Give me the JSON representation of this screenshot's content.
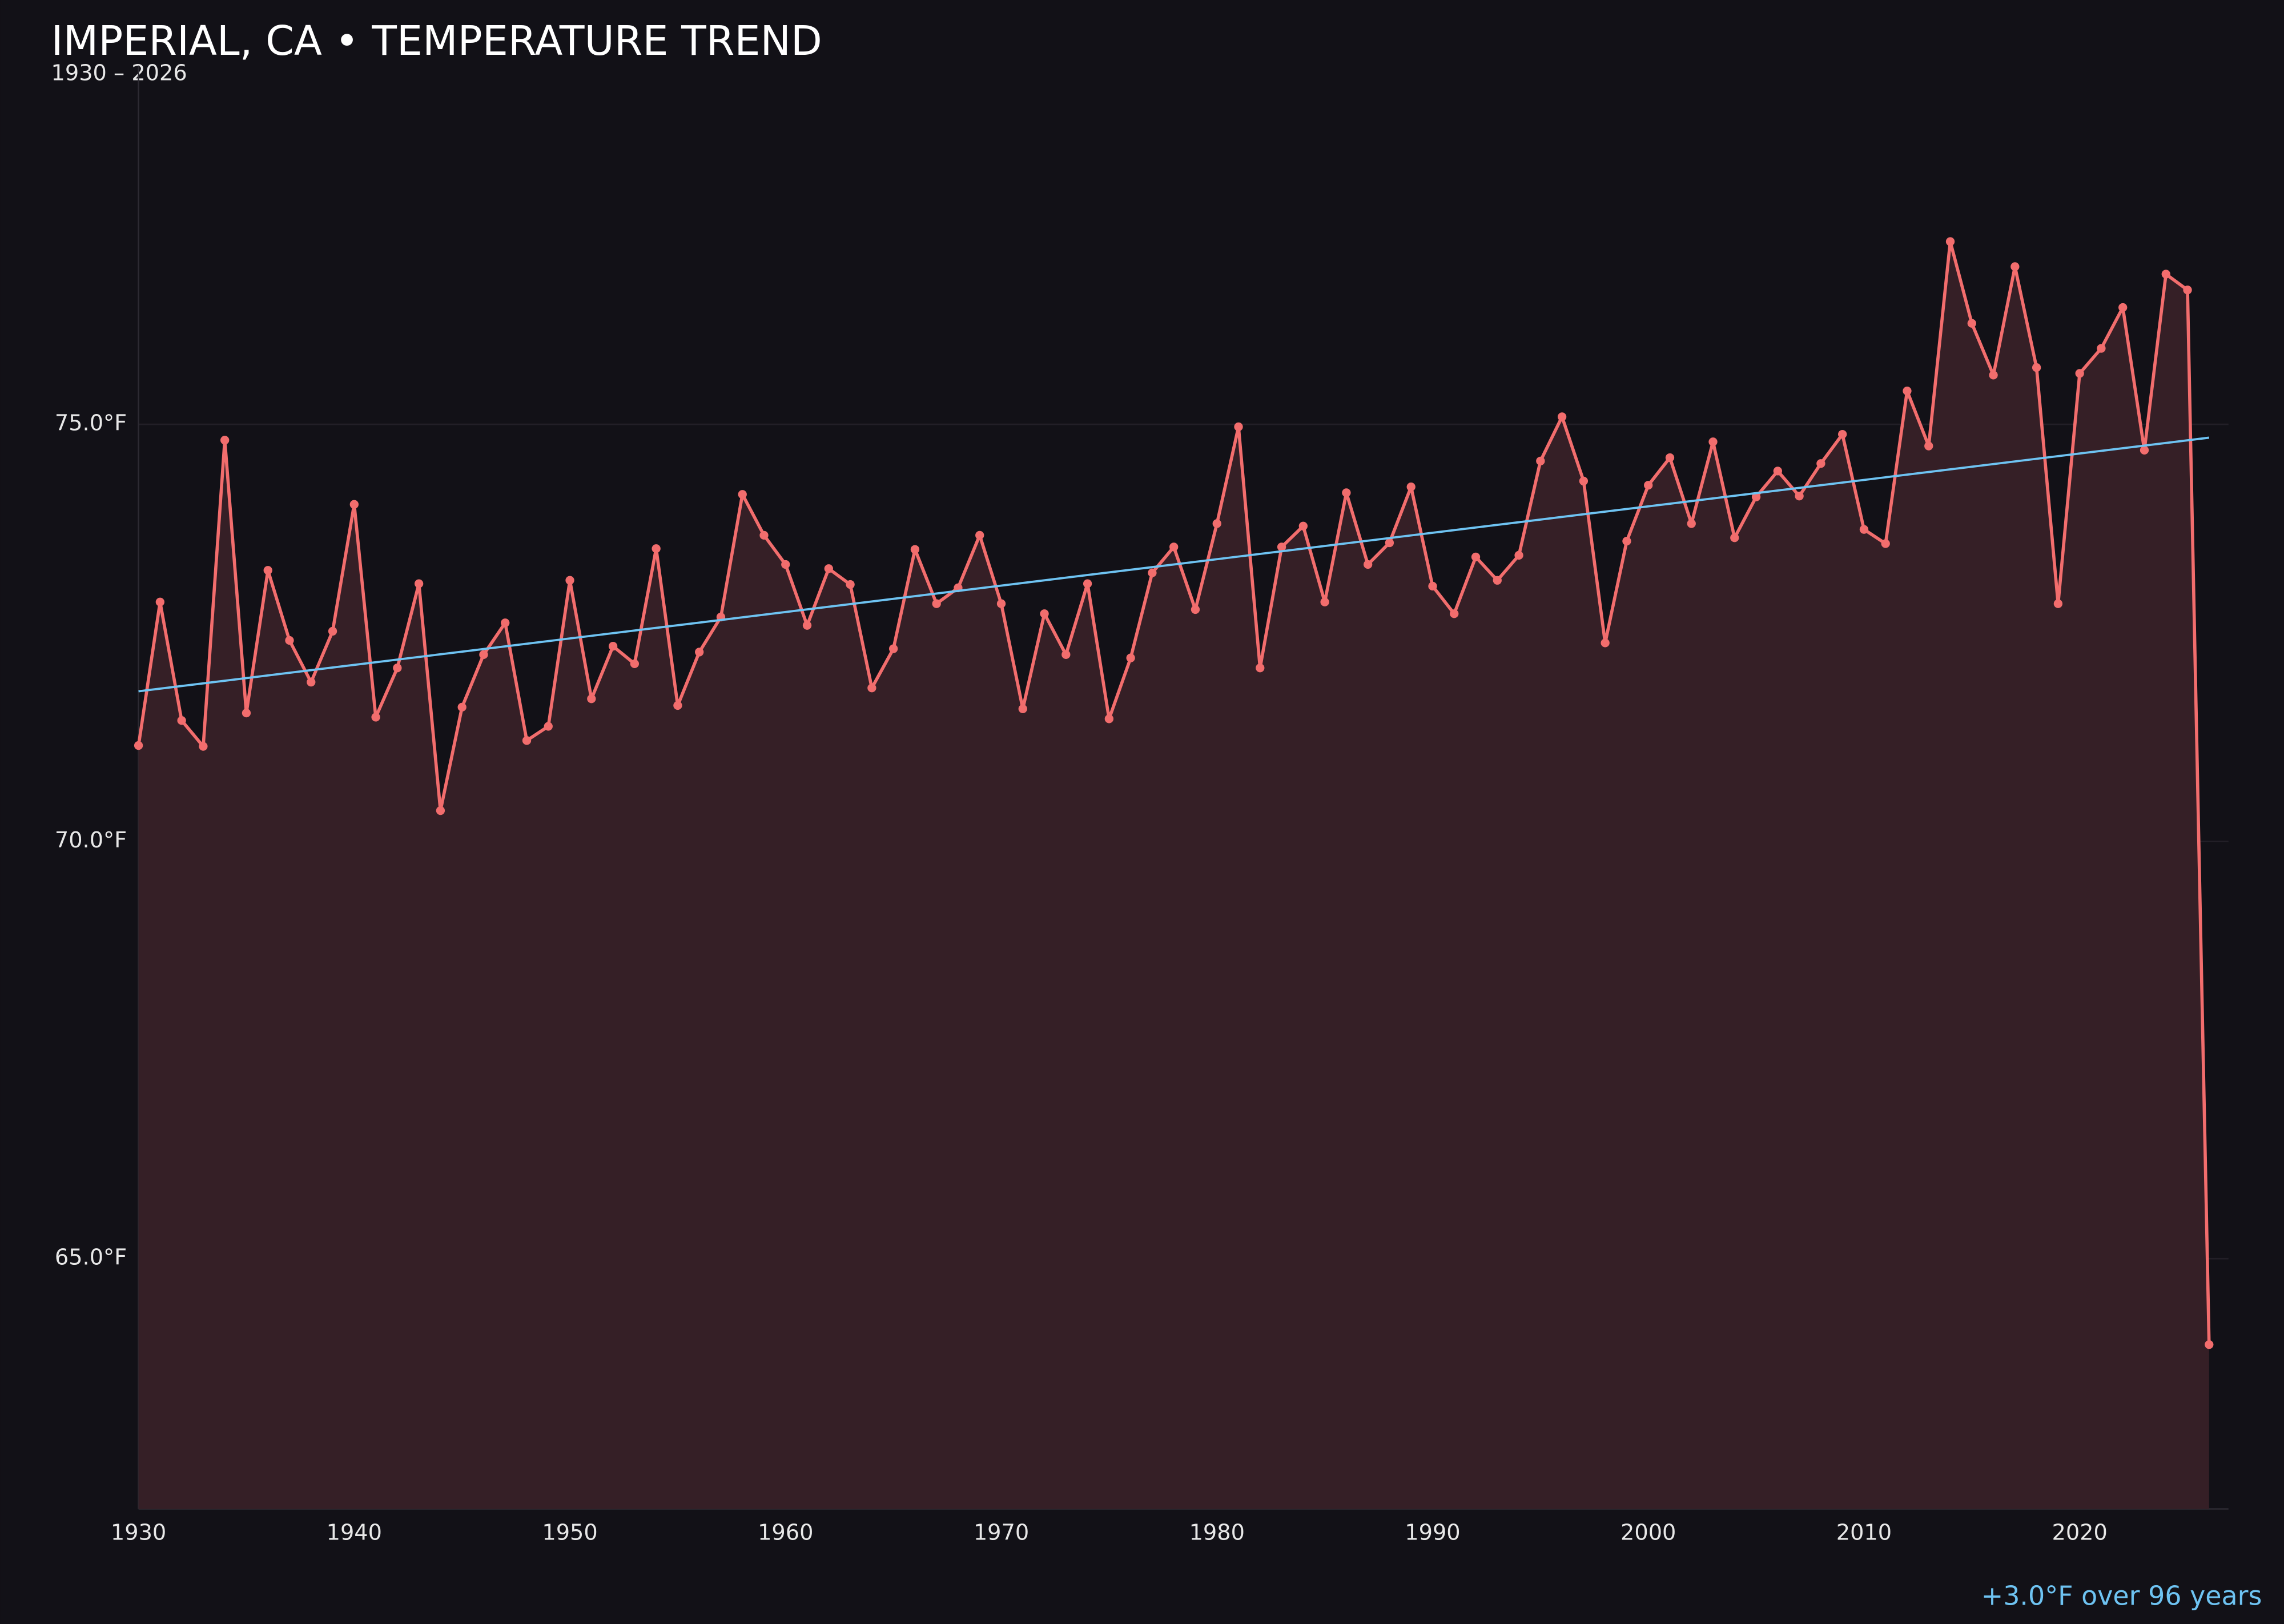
{
  "chart_data": {
    "type": "line",
    "title": "IMPERIAL, CA • TEMPERATURE TREND",
    "subtitle": "1930 – 2026",
    "x": [
      1930,
      1931,
      1932,
      1933,
      1934,
      1935,
      1936,
      1937,
      1938,
      1939,
      1940,
      1941,
      1942,
      1943,
      1944,
      1945,
      1946,
      1947,
      1948,
      1949,
      1950,
      1951,
      1952,
      1953,
      1954,
      1955,
      1956,
      1957,
      1958,
      1959,
      1960,
      1961,
      1962,
      1963,
      1964,
      1965,
      1966,
      1967,
      1968,
      1969,
      1970,
      1971,
      1972,
      1973,
      1974,
      1975,
      1976,
      1977,
      1978,
      1979,
      1980,
      1981,
      1982,
      1983,
      1984,
      1985,
      1986,
      1987,
      1988,
      1989,
      1990,
      1991,
      1992,
      1993,
      1994,
      1995,
      1996,
      1997,
      1998,
      1999,
      2000,
      2001,
      2002,
      2003,
      2004,
      2005,
      2006,
      2007,
      2008,
      2009,
      2010,
      2011,
      2012,
      2013,
      2014,
      2015,
      2016,
      2017,
      2018,
      2019,
      2020,
      2021,
      2022,
      2023,
      2024,
      2025,
      2026
    ],
    "series": [
      {
        "color": "#f26d6d",
        "fill": "#351f26",
        "values": [
          71.15,
          72.87,
          71.45,
          71.14,
          74.81,
          71.54,
          73.25,
          72.41,
          71.91,
          72.52,
          74.04,
          71.49,
          72.08,
          73.09,
          70.37,
          71.61,
          72.24,
          72.62,
          71.21,
          71.38,
          73.13,
          71.71,
          72.34,
          72.13,
          73.51,
          71.63,
          72.27,
          72.69,
          74.16,
          73.67,
          73.32,
          72.59,
          73.27,
          73.08,
          71.84,
          72.31,
          73.5,
          72.85,
          73.04,
          73.67,
          72.85,
          71.59,
          72.73,
          72.24,
          73.09,
          71.47,
          72.2,
          73.22,
          73.53,
          72.78,
          73.81,
          74.97,
          72.08,
          73.53,
          73.78,
          72.87,
          74.18,
          73.32,
          73.58,
          74.25,
          73.06,
          72.73,
          73.41,
          73.13,
          73.43,
          74.56,
          75.09,
          74.32,
          72.38,
          73.6,
          74.27,
          74.6,
          73.81,
          74.79,
          73.64,
          74.13,
          74.44,
          74.14,
          74.53,
          74.88,
          73.74,
          73.57,
          75.4,
          74.74,
          77.19,
          76.21,
          75.59,
          76.89,
          75.68,
          72.85,
          75.61,
          75.91,
          76.4,
          74.69,
          76.8,
          76.61,
          63.97
        ]
      }
    ],
    "trend": {
      "x": [
        1930,
        2026
      ],
      "values": [
        71.8,
        74.84
      ],
      "color": "#6ec3f2"
    },
    "annotation": "+3.0°F over 96 years",
    "xlim": [
      1930,
      2026.9
    ],
    "ylim": [
      62,
      79.3
    ],
    "xticks": [
      1930,
      1940,
      1950,
      1960,
      1970,
      1980,
      1990,
      2000,
      2010,
      2020
    ],
    "yticks": [
      {
        "value": 65,
        "label": "65.0°F"
      },
      {
        "value": 70,
        "label": "70.0°F"
      },
      {
        "value": 75,
        "label": "75.0°F"
      }
    ],
    "grid": true
  }
}
